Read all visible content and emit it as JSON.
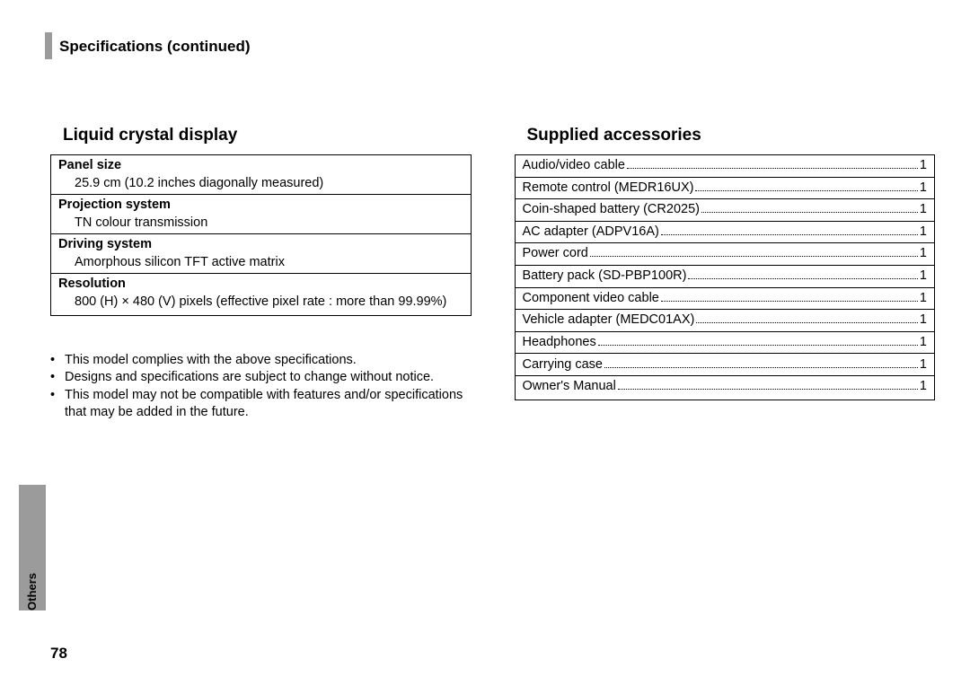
{
  "page": {
    "header_title": "Specifications (continued)",
    "page_number": "78",
    "side_label": "Others"
  },
  "lcd": {
    "heading": "Liquid crystal display",
    "items": [
      {
        "label": "Panel size",
        "value": "25.9 cm (10.2 inches diagonally measured)"
      },
      {
        "label": "Projection system",
        "value": "TN colour transmission"
      },
      {
        "label": "Driving system",
        "value": "Amorphous silicon TFT active matrix"
      },
      {
        "label": "Resolution",
        "value": "800 (H) × 480 (V) pixels (effective pixel rate : more than 99.99%)"
      }
    ]
  },
  "notes": [
    "This model complies with the above specifications.",
    "Designs and specifications are subject to change without notice.",
    "This model may not be compatible with features and/or specifications that may be added in the future."
  ],
  "accessories": {
    "heading": "Supplied accessories",
    "items": [
      {
        "name": "Audio/video cable ",
        "qty": "1"
      },
      {
        "name": "Remote control (MEDR16UX)",
        "qty": "1"
      },
      {
        "name": "Coin-shaped battery (CR2025)",
        "qty": "1"
      },
      {
        "name": "AC adapter (ADPV16A)",
        "qty": "1"
      },
      {
        "name": "Power cord",
        "qty": "1"
      },
      {
        "name": "Battery pack (SD-PBP100R)",
        "qty": "1"
      },
      {
        "name": "Component video cable",
        "qty": "1"
      },
      {
        "name": "Vehicle adapter (MEDC01AX)",
        "qty": "1"
      },
      {
        "name": "Headphones",
        "qty": "1"
      },
      {
        "name": "Carrying case",
        "qty": "1"
      },
      {
        "name": "Owner's Manual",
        "qty": "1"
      }
    ]
  },
  "style": {
    "bullet": "•"
  }
}
